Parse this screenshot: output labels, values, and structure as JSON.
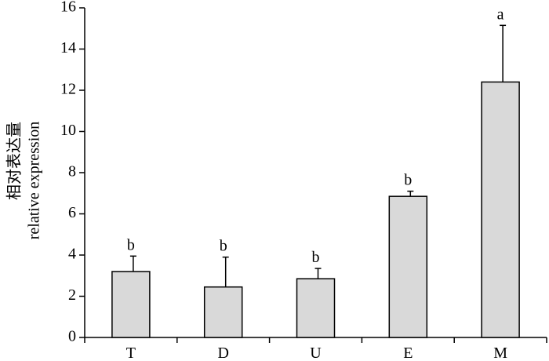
{
  "chart_data": {
    "type": "bar",
    "categories": [
      "T",
      "D",
      "U",
      "E",
      "M"
    ],
    "values": [
      3.2,
      2.45,
      2.85,
      6.85,
      12.4
    ],
    "errors": [
      0.75,
      1.45,
      0.5,
      0.25,
      2.75
    ],
    "significance": [
      "b",
      "b",
      "b",
      "b",
      "a"
    ],
    "title": "",
    "xlabel": "",
    "ylabel_line1": "相对表达量",
    "ylabel_line2": "relative expression",
    "ylim": [
      0,
      16
    ],
    "yticks": [
      0,
      2,
      4,
      6,
      8,
      10,
      12,
      14,
      16
    ],
    "ytick_labels": [
      "0",
      "2",
      "4",
      "6",
      "8",
      "10",
      "12",
      "14",
      "16"
    ],
    "grid": false,
    "bar_color": "#d9d9d9",
    "edge_color": "#000000"
  }
}
